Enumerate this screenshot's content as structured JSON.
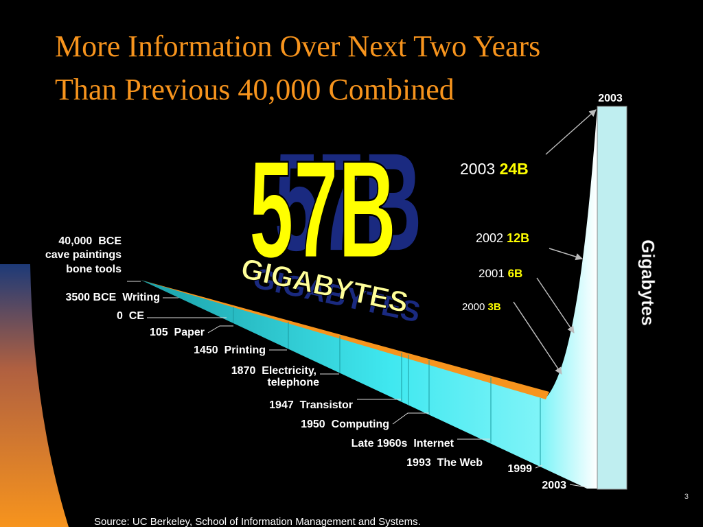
{
  "title": {
    "line1": "More Information Over Next Two Years",
    "line2": "Than Previous 40,000 Combined"
  },
  "headline": {
    "amount": "57B",
    "unit": "GIGABYTES"
  },
  "milestones": [
    {
      "lines": [
        "40,000  BCE",
        "cave paintings",
        "bone tools"
      ]
    },
    {
      "lines": [
        "3500 BCE  Writing"
      ]
    },
    {
      "lines": [
        "0  CE"
      ]
    },
    {
      "lines": [
        "105  Paper"
      ]
    },
    {
      "lines": [
        "1450  Printing"
      ]
    },
    {
      "lines": [
        "1870  Electricity,",
        "telephone"
      ]
    },
    {
      "lines": [
        "1947  Transistor"
      ]
    },
    {
      "lines": [
        "1950  Computing"
      ]
    },
    {
      "lines": [
        "Late 1960s  Internet"
      ]
    },
    {
      "lines": [
        "1993  The Web"
      ]
    }
  ],
  "growth": [
    {
      "year": "2003",
      "amount": "24B"
    },
    {
      "year": "2002",
      "amount": "12B"
    },
    {
      "year": "2001",
      "amount": "6B"
    },
    {
      "year": "2000",
      "amount": "3B"
    }
  ],
  "axis": {
    "label": "Gigabytes",
    "top_year": "2003",
    "year_1999": "1999",
    "year_2003": "2003"
  },
  "footer": {
    "source": "Source: UC Berkeley, School of Information Management and Systems.",
    "page": "3"
  }
}
